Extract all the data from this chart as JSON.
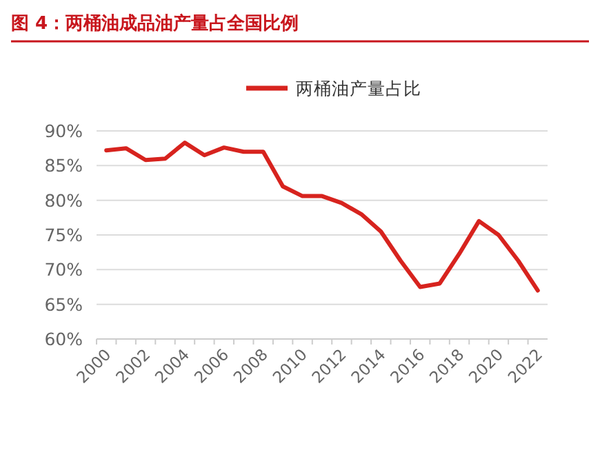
{
  "chart_data": {
    "type": "line",
    "title": "图 4：两桶油成品油产量占全国比例",
    "categories": [
      "2000",
      null,
      "2002",
      null,
      "2004",
      null,
      "2006",
      null,
      "2008",
      null,
      "2010",
      null,
      "2012",
      null,
      "2014",
      null,
      "2016",
      null,
      "2018",
      null,
      "2020",
      null,
      "2022"
    ],
    "series": [
      {
        "name": "两桶油产量占比",
        "color": "#d7231e",
        "values": [
          87.2,
          87.5,
          85.8,
          86.0,
          88.3,
          86.5,
          87.6,
          87.0,
          87.0,
          82.0,
          80.6,
          80.6,
          79.6,
          78.0,
          75.5,
          71.3,
          67.5,
          68.0,
          72.3,
          77.0,
          75.0,
          71.3,
          67.0
        ]
      }
    ],
    "ylim": [
      60,
      90
    ],
    "yticks": [
      {
        "value": 60,
        "label": "60%"
      },
      {
        "value": 65,
        "label": "65%"
      },
      {
        "value": 70,
        "label": "70%"
      },
      {
        "value": 75,
        "label": "75%"
      },
      {
        "value": 80,
        "label": "80%"
      },
      {
        "value": 85,
        "label": "85%"
      },
      {
        "value": 90,
        "label": "90%"
      }
    ],
    "grid": "y",
    "legend": "top",
    "marker": "none",
    "line_style": "solid"
  }
}
